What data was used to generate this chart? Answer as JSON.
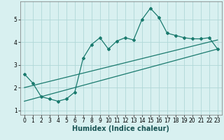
{
  "xlabel": "Humidex (Indice chaleur)",
  "bg_color": "#d8f0f0",
  "grid_color": "#b0d8d8",
  "line_color": "#1a7a6e",
  "curve_x": [
    0,
    1,
    2,
    3,
    4,
    5,
    6,
    7,
    8,
    9,
    10,
    11,
    12,
    13,
    14,
    15,
    16,
    17,
    18,
    19,
    20,
    21,
    22,
    23
  ],
  "curve_y": [
    2.6,
    2.2,
    1.6,
    1.5,
    1.4,
    1.5,
    1.8,
    3.3,
    3.9,
    4.2,
    3.7,
    4.05,
    4.2,
    4.1,
    5.0,
    5.5,
    5.1,
    4.4,
    4.3,
    4.2,
    4.15,
    4.15,
    4.2,
    3.7
  ],
  "line1_x": [
    0,
    23
  ],
  "line1_y": [
    1.4,
    3.7
  ],
  "line2_x": [
    0,
    23
  ],
  "line2_y": [
    2.0,
    4.1
  ],
  "xlim": [
    -0.5,
    23.5
  ],
  "ylim": [
    0.8,
    5.8
  ],
  "xticks": [
    0,
    1,
    2,
    3,
    4,
    5,
    6,
    7,
    8,
    9,
    10,
    11,
    12,
    13,
    14,
    15,
    16,
    17,
    18,
    19,
    20,
    21,
    22,
    23
  ],
  "yticks": [
    1,
    2,
    3,
    4,
    5
  ],
  "tick_fontsize": 5.5,
  "label_fontsize": 7.0,
  "marker": "D",
  "marker_size": 2.0,
  "linewidth": 0.9
}
